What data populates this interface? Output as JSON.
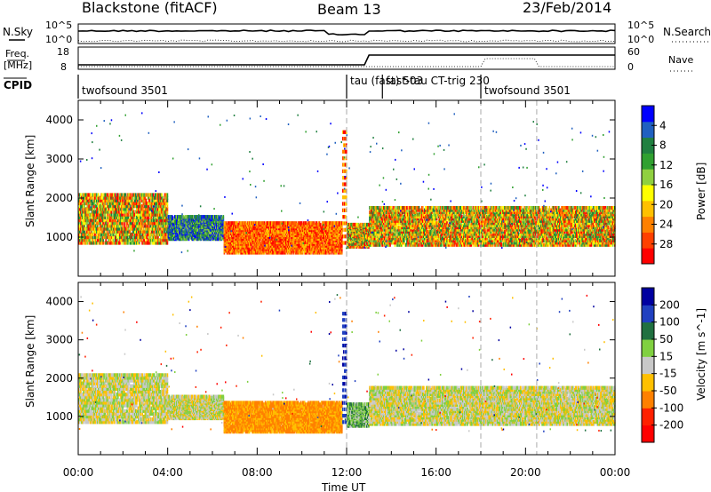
{
  "header": {
    "radar": "Blackstone (fitACF)",
    "beam": "Beam 13",
    "date": "23/Feb/2014"
  },
  "summary": {
    "nsky_label": "N.Sky",
    "nsearch_label": "N.Search",
    "freq_label_1": "Freq.",
    "freq_label_2": "[MHz]",
    "nave_label": "Nave",
    "cpid_label": "CPID",
    "left_ticks_top": [
      "10^5",
      "10^0"
    ],
    "right_ticks_top": [
      "10^5",
      "10^0"
    ],
    "freq_ticks": [
      "18",
      "8"
    ],
    "nave_ticks": [
      "60",
      "0"
    ],
    "cpid_segments": [
      {
        "start_h": 0.0,
        "label": "twofsound 3501"
      },
      {
        "start_h": 12.0,
        "label": "tau (fast) 503"
      },
      {
        "start_h": 13.6,
        "label": "fast-tau CT-trig 230"
      },
      {
        "start_h": 18.0,
        "label": "twofsound 3501"
      }
    ]
  },
  "chart_data": [
    {
      "type": "heatmap",
      "title": "",
      "xlabel": "",
      "ylabel": "Slant Range [km]",
      "xlim": [
        0,
        24
      ],
      "ylim": [
        0,
        4500
      ],
      "y_ticks": [
        "1000",
        "2000",
        "3000",
        "4000"
      ],
      "colorbar": {
        "label": "Power [dB]",
        "ticks": [
          "4",
          "8",
          "12",
          "16",
          "20",
          "24",
          "28"
        ],
        "range": [
          0,
          30
        ],
        "colors": [
          "#0000ff",
          "#2060c0",
          "#208040",
          "#30a030",
          "#90d040",
          "#ffff00",
          "#ffc000",
          "#ff8000",
          "#ff4000",
          "#ff0000"
        ]
      },
      "bands": [
        {
          "start_h": 0.0,
          "end_h": 4.0,
          "range_km": [
            900,
            2200
          ],
          "level": "medium"
        },
        {
          "start_h": 4.0,
          "end_h": 6.5,
          "range_km": [
            1000,
            1600
          ],
          "level": "low"
        },
        {
          "start_h": 6.5,
          "end_h": 11.8,
          "range_km": [
            650,
            1450
          ],
          "level": "high"
        },
        {
          "start_h": 11.8,
          "end_h": 12.0,
          "range_km": [
            900,
            3900
          ],
          "level": "high"
        },
        {
          "start_h": 12.0,
          "end_h": 13.0,
          "range_km": [
            800,
            1400
          ],
          "level": "medium"
        },
        {
          "start_h": 13.0,
          "end_h": 24.0,
          "range_km": [
            850,
            1850
          ],
          "level": "medium"
        }
      ]
    },
    {
      "type": "heatmap",
      "title": "",
      "xlabel": "Time UT",
      "ylabel": "Slant Range [km]",
      "xlim": [
        0,
        24
      ],
      "ylim": [
        0,
        4500
      ],
      "x_ticks": [
        "00:00",
        "04:00",
        "08:00",
        "12:00",
        "16:00",
        "20:00",
        "00:00"
      ],
      "y_ticks": [
        "1000",
        "2000",
        "3000",
        "4000"
      ],
      "colorbar": {
        "label": "Velocity [m s^-1]",
        "ticks": [
          "200",
          "100",
          "50",
          "15",
          "-15",
          "-50",
          "-100",
          "-200"
        ],
        "range": [
          -250,
          250
        ],
        "colors": [
          "#0000a0",
          "#2040c0",
          "#207040",
          "#80d040",
          "#c8c8c8",
          "#ffc000",
          "#ff8000",
          "#ff2000",
          "#ff0000"
        ]
      },
      "bands": [
        {
          "start_h": 0.0,
          "end_h": 4.0,
          "range_km": [
            900,
            2200
          ],
          "velocity_ms": 0
        },
        {
          "start_h": 4.0,
          "end_h": 6.5,
          "range_km": [
            1000,
            1600
          ],
          "velocity_ms": 0
        },
        {
          "start_h": 6.5,
          "end_h": 11.8,
          "range_km": [
            650,
            1450
          ],
          "velocity_ms": -60
        },
        {
          "start_h": 11.8,
          "end_h": 12.0,
          "range_km": [
            900,
            3900
          ],
          "velocity_ms": 180
        },
        {
          "start_h": 12.0,
          "end_h": 13.0,
          "range_km": [
            800,
            1400
          ],
          "velocity_ms": 40
        },
        {
          "start_h": 13.0,
          "end_h": 24.0,
          "range_km": [
            850,
            1850
          ],
          "velocity_ms": 0
        }
      ]
    }
  ]
}
